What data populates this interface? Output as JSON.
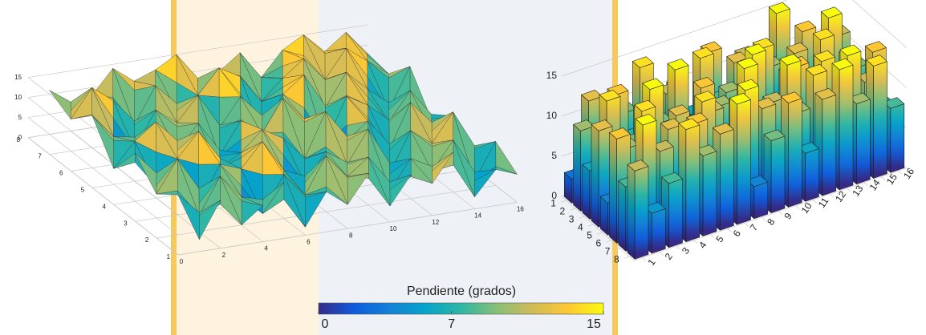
{
  "chart_data": [
    {
      "type": "surface",
      "z": [
        [
          3,
          12,
          5,
          9,
          14,
          2,
          10,
          6,
          13,
          4,
          11,
          8,
          15,
          3,
          9,
          7
        ],
        [
          10,
          4,
          13,
          7,
          2,
          11,
          5,
          14,
          8,
          12,
          3,
          10,
          6,
          13,
          2,
          11
        ],
        [
          6,
          14,
          2,
          11,
          9,
          15,
          7,
          3,
          10,
          6,
          14,
          2,
          12,
          8,
          15,
          5
        ],
        [
          12,
          3,
          9,
          15,
          5,
          8,
          13,
          10,
          4,
          15,
          7,
          11,
          3,
          14,
          6,
          9
        ],
        [
          4,
          10,
          14,
          6,
          12,
          3,
          11,
          7,
          15,
          9,
          2,
          13,
          10,
          5,
          12,
          4
        ],
        [
          13,
          7,
          3,
          12,
          8,
          14,
          5,
          12,
          2,
          11,
          15,
          6,
          14,
          9,
          3,
          13
        ],
        [
          8,
          15,
          11,
          4,
          13,
          6,
          9,
          15,
          12,
          5,
          10,
          14,
          8,
          15,
          11,
          7
        ],
        [
          11,
          5,
          8,
          14,
          10,
          12,
          15,
          4,
          9,
          13,
          6,
          12,
          15,
          10,
          14,
          8
        ]
      ],
      "xlim": [
        0,
        16
      ],
      "xticks": [
        0,
        2,
        4,
        6,
        8,
        10,
        12,
        14,
        16
      ],
      "ylim": [
        1,
        8
      ],
      "yticks": [
        1,
        2,
        3,
        4,
        5,
        6,
        7,
        8
      ],
      "zlim": [
        0,
        15
      ],
      "zticks": [
        0,
        5,
        10,
        15
      ],
      "grid": true
    },
    {
      "type": "bar3",
      "z": [
        [
          3,
          12,
          5,
          9,
          14,
          2,
          10,
          6,
          13,
          4,
          11,
          8,
          15,
          3,
          9,
          7
        ],
        [
          10,
          4,
          13,
          7,
          2,
          11,
          5,
          14,
          8,
          12,
          3,
          10,
          6,
          13,
          2,
          11
        ],
        [
          6,
          14,
          2,
          11,
          9,
          15,
          7,
          3,
          10,
          6,
          14,
          2,
          12,
          8,
          15,
          5
        ],
        [
          12,
          3,
          9,
          15,
          5,
          8,
          13,
          10,
          4,
          15,
          7,
          11,
          3,
          14,
          6,
          9
        ],
        [
          4,
          10,
          14,
          6,
          12,
          3,
          11,
          7,
          15,
          9,
          2,
          13,
          10,
          5,
          12,
          4
        ],
        [
          13,
          7,
          3,
          12,
          8,
          14,
          5,
          12,
          2,
          11,
          15,
          6,
          14,
          9,
          3,
          13
        ],
        [
          8,
          15,
          11,
          4,
          13,
          6,
          9,
          15,
          12,
          5,
          10,
          14,
          8,
          15,
          11,
          7
        ],
        [
          11,
          5,
          8,
          14,
          10,
          12,
          15,
          4,
          9,
          13,
          6,
          12,
          15,
          10,
          14,
          8
        ]
      ],
      "xticks": [
        1,
        2,
        3,
        4,
        5,
        6,
        7,
        8,
        9,
        10,
        11,
        12,
        13,
        14,
        15,
        16
      ],
      "yticks": [
        1,
        2,
        3,
        4,
        5,
        6,
        7,
        8
      ],
      "zlim": [
        0,
        15
      ],
      "zticks": [
        0,
        5,
        10,
        15
      ],
      "grid": true
    }
  ],
  "colorbar": {
    "label": "Pendiente (grados)",
    "lim": [
      0,
      15
    ],
    "ticks": [
      0,
      7,
      15
    ],
    "colormap": [
      "#352a87",
      "#0f5cdd",
      "#1481d6",
      "#06a4ca",
      "#2eb7a4",
      "#87bf77",
      "#d1bb59",
      "#fec832",
      "#f9fb0e"
    ]
  }
}
